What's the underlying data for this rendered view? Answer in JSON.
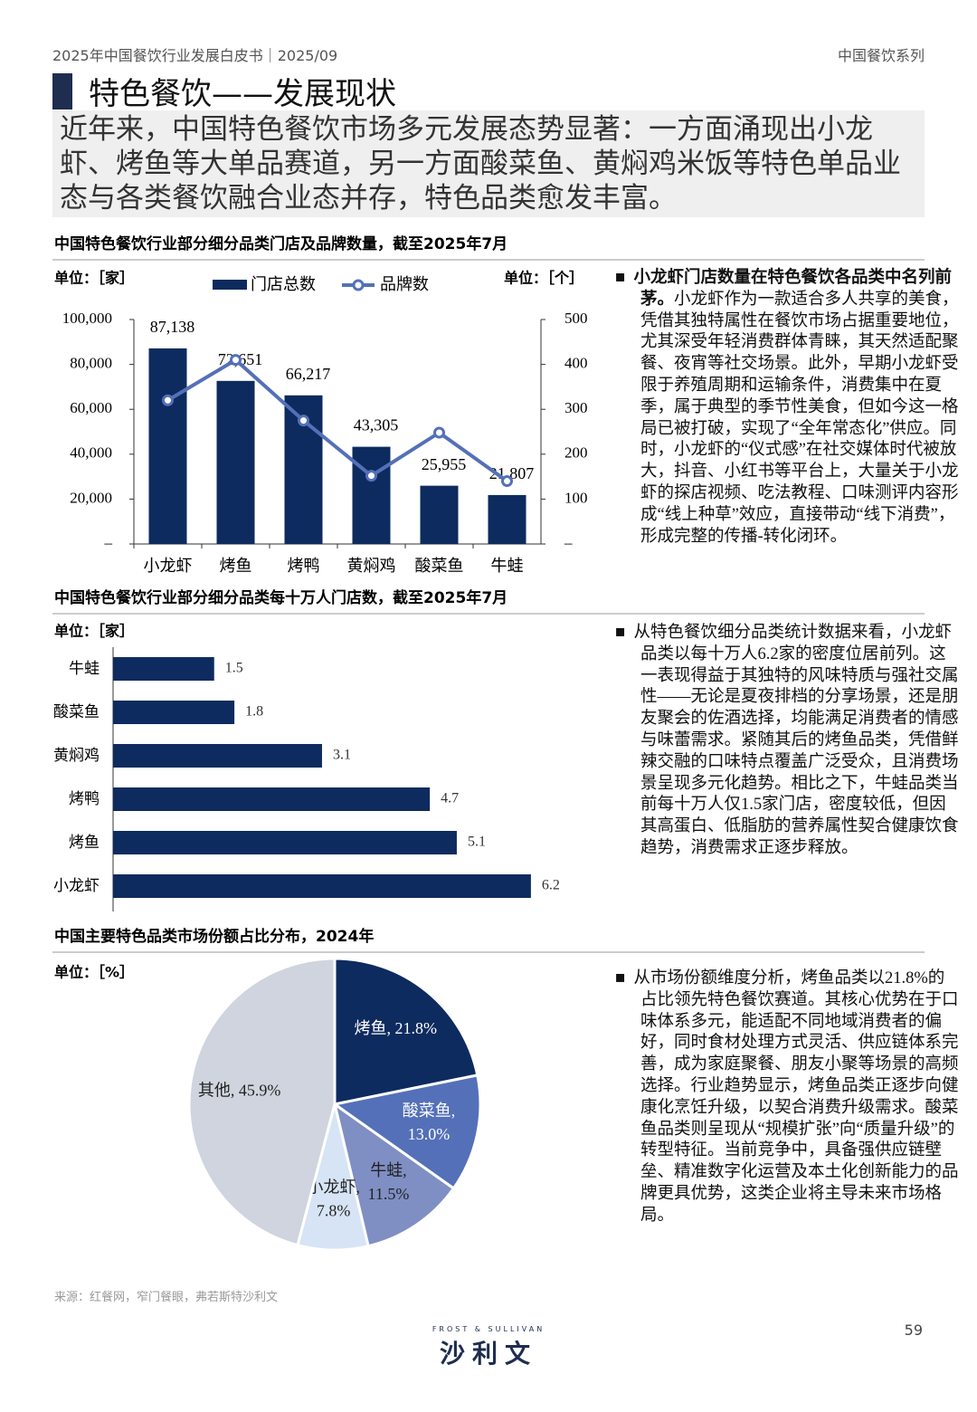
{
  "header": {
    "left": "2025年中国餐饮行业发展白皮书｜2025/09",
    "right": "中国餐饮系列"
  },
  "title": "特色餐饮——发展现状",
  "summary": "近年来，中国特色餐饮市场多元发展态势显著：一方面涌现出小龙虾、烤鱼等大单品赛道，另一方面酸菜鱼、黄焖鸡米饭等特色单品业态与各类餐饮融合业态并存，特色品类愈发丰富。",
  "chart_data": [
    {
      "type": "bar-line",
      "title": "中国特色餐饮行业部分细分品类门店及品牌数量，截至2025年7月",
      "y_unit": "单位：［家］",
      "y2_unit": "单位：［个］",
      "categories": [
        "小龙虾",
        "烤鱼",
        "烤鸭",
        "黄焖鸡",
        "酸菜鱼",
        "牛蛙"
      ],
      "series": [
        {
          "name": "门店总数",
          "type": "bar",
          "color": "#0d2b5e",
          "values": [
            87138,
            72651,
            66217,
            43305,
            25955,
            21807
          ],
          "value_labels": [
            "87,138",
            "72,651",
            "66,217",
            "43,305",
            "25,955",
            "21,807"
          ]
        },
        {
          "name": "品牌数",
          "type": "line",
          "axis": "y2",
          "color": "#5470b8",
          "values": [
            320,
            410,
            275,
            152,
            248,
            140
          ]
        }
      ],
      "ylim": [
        0,
        100000
      ],
      "yticks": [
        {
          "value": 0,
          "label": "–"
        },
        {
          "value": 20000,
          "label": "20,000"
        },
        {
          "value": 40000,
          "label": "40,000"
        },
        {
          "value": 60000,
          "label": "60,000"
        },
        {
          "value": 80000,
          "label": "80,000"
        },
        {
          "value": 100000,
          "label": "100,000"
        }
      ],
      "y2lim": [
        0,
        500
      ],
      "y2ticks": [
        {
          "value": 0,
          "label": "–"
        },
        100,
        200,
        300,
        400,
        500
      ]
    },
    {
      "type": "hbar",
      "title": "中国特色餐饮行业部分细分品类每十万人门店数，截至2025年7月",
      "x_unit": "单位：［家］",
      "color": "#0d2b5e",
      "categories": [
        "牛蛙",
        "酸菜鱼",
        "黄焖鸡",
        "烤鸭",
        "烤鱼",
        "小龙虾"
      ],
      "values": [
        1.5,
        1.8,
        3.1,
        4.7,
        5.1,
        6.2
      ]
    },
    {
      "type": "pie",
      "title": "中国主要特色品类市场份额占比分布，2024年",
      "unit": "单位：［%］",
      "values": [
        21.8,
        13.0,
        11.5,
        7.8,
        45.9
      ],
      "colors": [
        "#0d2b5e",
        "#5470b8",
        "#7f8fc4",
        "#d6e4f5",
        "#cfd4de"
      ],
      "value_labels": [
        [
          "烤鱼, 21.8%"
        ],
        [
          "酸菜鱼,",
          "13.0%"
        ],
        [
          "牛蛙,",
          "11.5%"
        ],
        [
          "小龙虾,",
          "7.8%"
        ],
        [
          "其他, 45.9%"
        ]
      ]
    }
  ],
  "paragraphs": [
    {
      "bold": "小龙虾门店数量在特色餐饮各品类中名列前茅。",
      "text": "小龙虾作为一款适合多人共享的美食，凭借其独特属性在餐饮市场占据重要地位，尤其深受年轻消费群体青睐，其天然适配聚餐、夜宵等社交场景。此外，早期小龙虾受限于养殖周期和运输条件，消费集中在夏季，属于典型的季节性美食，但如今这一格局已被打破，实现了“全年常态化”供应。同时，小龙虾的“仪式感”在社交媒体时代被放大，抖音、小红书等平台上，大量关于小龙虾的探店视频、吃法教程、口味测评内容形成“线上种草”效应，直接带动“线下消费”，形成完整的传播-转化闭环。"
    },
    {
      "text": "从特色餐饮细分品类统计数据来看，小龙虾品类以每十万人6.2家的密度位居前列。这一表现得益于其独特的风味特质与强社交属性——无论是夏夜排档的分享场景，还是朋友聚会的佐酒选择，均能满足消费者的情感与味蕾需求。紧随其后的烤鱼品类，凭借鲜辣交融的口味特点覆盖广泛受众，且消费场景呈现多元化趋势。相比之下，牛蛙品类当前每十万人仅1.5家门店，密度较低，但因其高蛋白、低脂肪的营养属性契合健康饮食趋势，消费需求正逐步释放。"
    },
    {
      "text": "从市场份额维度分析，烤鱼品类以21.8%的占比领先特色餐饮赛道。其核心优势在于口味体系多元，能适配不同地域消费者的偏好，同时食材处理方式灵活、供应链体系完善，成为家庭聚餐、朋友小聚等场景的高频选择。行业趋势显示，烤鱼品类正逐步向健康化烹饪升级，以契合消费升级需求。酸菜鱼品类则呈现从“规模扩张”向“质量升级”的转型特征。当前竞争中，具备强供应链壁垒、精准数字化运营及本土化创新能力的品牌更具优势，这类企业将主导未来市场格局。"
    }
  ],
  "source": "来源：红餐网，窄门餐眼，弗若斯特沙利文",
  "footer": {
    "logo_en": "FROST & SULLIVAN",
    "logo_cn": "沙利文",
    "page": "59"
  }
}
